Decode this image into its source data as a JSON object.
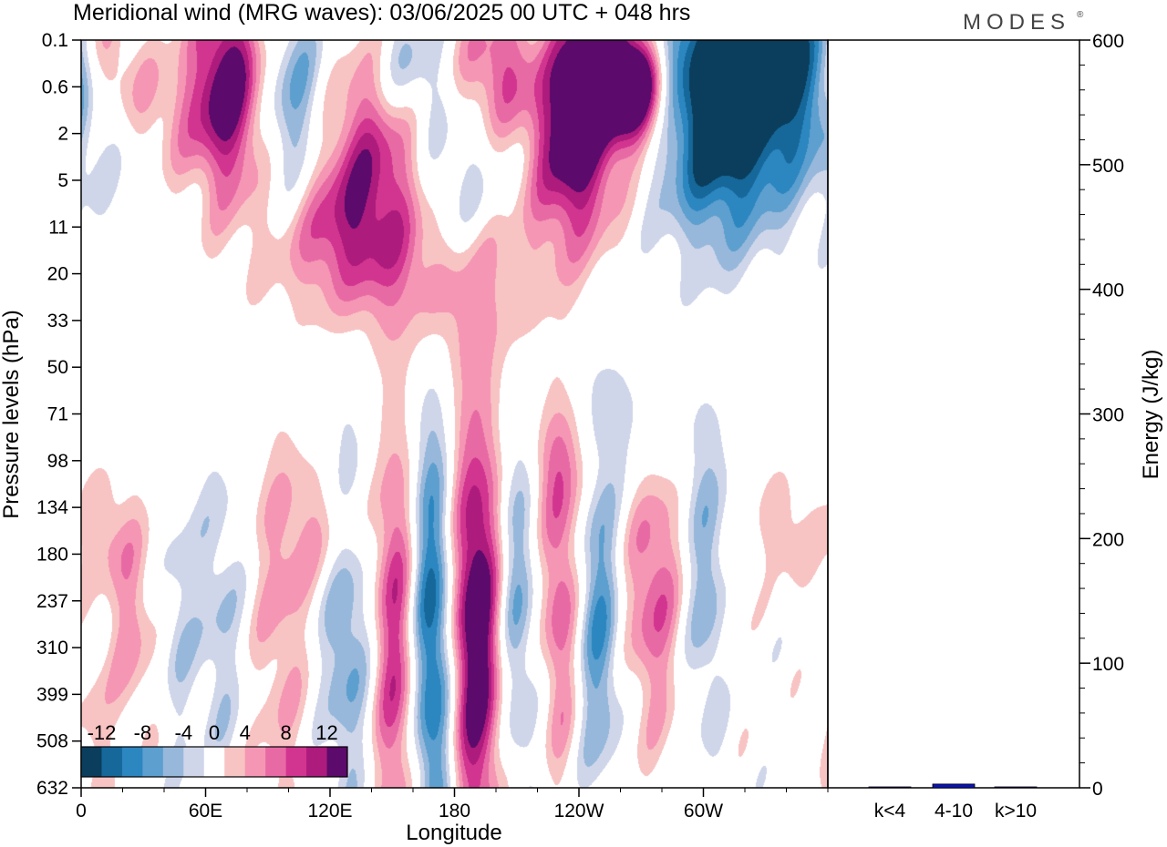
{
  "header": {
    "title": "Meridional wind (MRG waves):  03/06/2025  00 UTC  + 048 hrs",
    "brand": "MODES",
    "brand_mark": "®"
  },
  "chart_data": [
    {
      "type": "heatmap",
      "title": "Meridional wind (MRG waves):  03/06/2025  00 UTC  + 048 hrs",
      "xlabel": "Longitude",
      "ylabel": "Pressure levels (hPa)",
      "x_ticks": [
        "0",
        "60E",
        "120E",
        "180",
        "120W",
        "60W"
      ],
      "x_tick_degrees": [
        0,
        60,
        120,
        180,
        240,
        300
      ],
      "x_range": [
        0,
        360
      ],
      "y_ticks": [
        "0.1",
        "0.6",
        "2",
        "5",
        "11",
        "20",
        "33",
        "50",
        "71",
        "98",
        "134",
        "180",
        "237",
        "310",
        "399",
        "508",
        "632"
      ],
      "colorbar": {
        "labels": [
          "-12",
          "-8",
          "-4",
          "0",
          "4",
          "8",
          "12"
        ],
        "levels": [
          -14,
          -12,
          -10,
          -8,
          -6,
          -4,
          -2,
          2,
          4,
          6,
          8,
          10,
          12,
          14
        ],
        "colors": [
          "#0b3d5c",
          "#16689a",
          "#2c86c0",
          "#5d9fcf",
          "#97b8da",
          "#cfd6ea",
          "#ffffff",
          "#f8c3c3",
          "#f596b4",
          "#e86aa5",
          "#d2358f",
          "#ad1b7d",
          "#5c0a6b"
        ]
      },
      "features": [
        {
          "lon": 70,
          "level": 1.0,
          "wl": 14,
          "wp": 1.5,
          "amp": 16
        },
        {
          "lon": 102,
          "level": 2.0,
          "wl": 14,
          "wp": 2.0,
          "amp": -9
        },
        {
          "lon": 144,
          "level": 1.8,
          "wl": 20,
          "wp": 1.5,
          "amp": 9
        },
        {
          "lon": 118,
          "level": 4.0,
          "wl": 24,
          "wp": 1.3,
          "amp": 10
        },
        {
          "lon": 178,
          "level": 3.6,
          "wl": 18,
          "wp": 1.4,
          "amp": -8
        },
        {
          "lon": 190,
          "level": 5.0,
          "wl": 24,
          "wp": 1.4,
          "amp": 6
        },
        {
          "lon": 238,
          "level": 2.2,
          "wl": 14,
          "wp": 1.5,
          "amp": 15
        },
        {
          "lon": 258,
          "level": 0.3,
          "wl": 16,
          "wp": 1.2,
          "amp": 17
        },
        {
          "lon": 268,
          "level": 1.0,
          "wl": 10,
          "wp": 0.8,
          "amp": 15
        },
        {
          "lon": 322,
          "level": 0.6,
          "wl": 30,
          "wp": 1.8,
          "amp": -18
        },
        {
          "lon": 306,
          "level": 2.6,
          "wl": 18,
          "wp": 1.6,
          "amp": -6
        },
        {
          "lon": 270,
          "level": 0.1,
          "wl": 10,
          "wp": 0.6,
          "amp": -8
        },
        {
          "lon": 36,
          "level": 1.0,
          "wl": 12,
          "wp": 1.0,
          "amp": 7
        },
        {
          "lon": 40,
          "level": 0.6,
          "wl": 16,
          "wp": 0.9,
          "amp": -4
        },
        {
          "lon": 158,
          "level": 0.7,
          "wl": 14,
          "wp": 1.0,
          "amp": -8
        },
        {
          "lon": 160,
          "level": 4.5,
          "wl": 20,
          "wp": 1.2,
          "amp": 5
        },
        {
          "lon": 12,
          "level": 0.2,
          "wl": 10,
          "wp": 1.0,
          "amp": 8
        },
        {
          "lon": 200,
          "level": 0.6,
          "wl": 14,
          "wp": 1.0,
          "amp": 8
        },
        {
          "lon": 120,
          "level": 10.5,
          "wl": 14,
          "wp": 1.0,
          "amp": 5
        },
        {
          "lon": 10,
          "level": 10.5,
          "wl": 8,
          "wp": 0.8,
          "amp": 4
        },
        {
          "lon": 340,
          "level": 10.5,
          "wl": 10,
          "wp": 0.8,
          "amp": 4
        },
        {
          "lon": 260,
          "level": 8.5,
          "wl": 20,
          "wp": 1.2,
          "amp": -4
        },
        {
          "lon": 236,
          "level": 9.0,
          "wl": 14,
          "wp": 0.9,
          "amp": 5
        },
        {
          "lon": 191,
          "level": 12.6,
          "wl": 11,
          "wp": 3.2,
          "amp": 17
        },
        {
          "lon": 170,
          "level": 12.9,
          "wl": 8,
          "wp": 3.4,
          "amp": -14
        },
        {
          "lon": 152,
          "level": 13.0,
          "wl": 8,
          "wp": 3.3,
          "amp": 10
        },
        {
          "lon": 128,
          "level": 12.3,
          "wl": 9,
          "wp": 2.8,
          "amp": -7
        },
        {
          "lon": 96,
          "level": 12.3,
          "wl": 10,
          "wp": 3.0,
          "amp": 4.5
        },
        {
          "lon": 66,
          "level": 12.3,
          "wl": 9,
          "wp": 2.5,
          "amp": -4
        },
        {
          "lon": 24,
          "level": 12.4,
          "wl": 8,
          "wp": 1.8,
          "amp": 5
        },
        {
          "lon": 46,
          "level": 12.4,
          "wl": 6,
          "wp": 2.0,
          "amp": -3
        },
        {
          "lon": 208,
          "level": 12.2,
          "wl": 8,
          "wp": 3.0,
          "amp": -9
        },
        {
          "lon": 231,
          "level": 11.8,
          "wl": 7,
          "wp": 2.6,
          "amp": 8
        },
        {
          "lon": 250,
          "level": 12.5,
          "wl": 8,
          "wp": 2.5,
          "amp": -8
        },
        {
          "lon": 276,
          "level": 11.6,
          "wl": 11,
          "wp": 2.2,
          "amp": 8
        },
        {
          "lon": 302,
          "level": 11.6,
          "wl": 9,
          "wp": 2.4,
          "amp": -6
        },
        {
          "lon": 314,
          "level": 12.4,
          "wl": 5,
          "wp": 1.5,
          "amp": 3
        },
        {
          "lon": 6,
          "level": 15.0,
          "wl": 6,
          "wp": 1.5,
          "amp": 3
        }
      ]
    },
    {
      "type": "bar",
      "categories": [
        "k<4",
        "4-10",
        "k>10"
      ],
      "values": [
        0,
        3,
        0
      ],
      "ylabel": "Energy (J/kg)",
      "ylim": [
        0,
        600
      ],
      "y_ticks": [
        "0",
        "100",
        "200",
        "300",
        "400",
        "500",
        "600"
      ],
      "bar_color": "#0a14b4"
    }
  ]
}
